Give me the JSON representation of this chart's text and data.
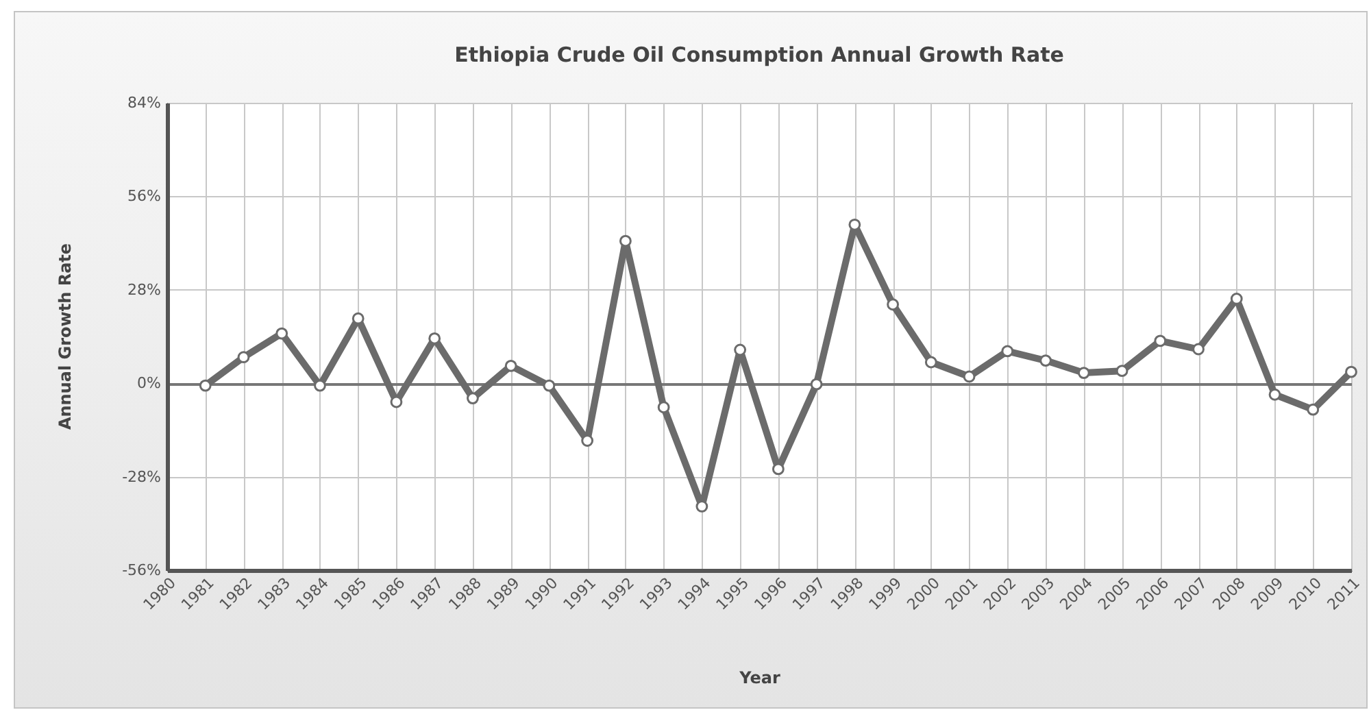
{
  "chart_data": {
    "type": "line",
    "title": "Ethiopia Crude Oil Consumption Annual Growth Rate",
    "xlabel": "Year",
    "ylabel": "Annual Growth Rate",
    "x": [
      1981,
      1982,
      1983,
      1984,
      1985,
      1986,
      1987,
      1988,
      1989,
      1990,
      1991,
      1992,
      1993,
      1994,
      1995,
      1996,
      1997,
      1998,
      1999,
      2000,
      2001,
      2002,
      2003,
      2004,
      2005,
      2006,
      2007,
      2008,
      2009,
      2010,
      2011
    ],
    "series": [
      {
        "color": "#6b6b6b",
        "values": [
          -0.7,
          7.8,
          14.9,
          -0.7,
          19.4,
          -5.6,
          13.4,
          -4.5,
          5.2,
          -0.7,
          -17.2,
          42.6,
          -7.2,
          -36.9,
          10.0,
          -25.7,
          -0.3,
          47.5,
          23.6,
          6.3,
          2.0,
          9.6,
          6.8,
          3.1,
          3.7,
          12.7,
          10.2,
          25.3,
          -3.4,
          -7.9,
          3.4
        ]
      }
    ],
    "xlim": [
      1980,
      2011
    ],
    "xticks": [
      1980,
      1981,
      1982,
      1983,
      1984,
      1985,
      1986,
      1987,
      1988,
      1989,
      1990,
      1991,
      1992,
      1993,
      1994,
      1995,
      1996,
      1997,
      1998,
      1999,
      2000,
      2001,
      2002,
      2003,
      2004,
      2005,
      2006,
      2007,
      2008,
      2009,
      2010,
      2011
    ],
    "ylim": [
      -56,
      84
    ],
    "yticks": [
      {
        "value": -56,
        "label": "-56%"
      },
      {
        "value": -28,
        "label": "-28%"
      },
      {
        "value": 0,
        "label": "0%"
      },
      {
        "value": 28,
        "label": "28%"
      },
      {
        "value": 56,
        "label": "56%"
      },
      {
        "value": 84,
        "label": "84%"
      }
    ],
    "grid": true,
    "marker": "circle"
  }
}
